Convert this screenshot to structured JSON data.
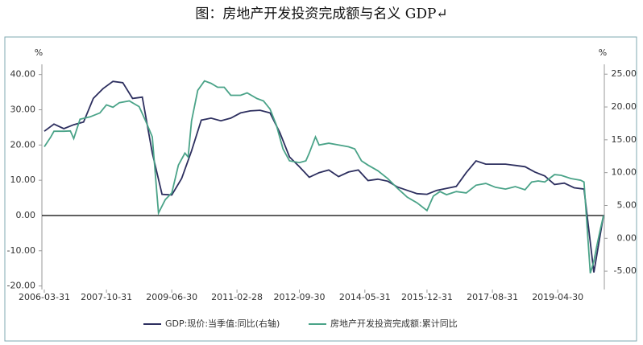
{
  "chart_data": {
    "type": "line",
    "title": "图：房地产开发投资完成额与名义 GDP↵",
    "y_unit": "%",
    "y2_unit": "%",
    "xlim": [
      "2006-03-31",
      "2020-06-30"
    ],
    "xticks": [
      "2006-03-31",
      "2007-10-31",
      "2009-06-30",
      "2011-02-28",
      "2012-09-30",
      "2014-05-31",
      "2015-12-31",
      "2017-08-31",
      "2019-04-30"
    ],
    "ylim": [
      -21,
      47
    ],
    "yticks": [
      {
        "value": -20,
        "label": "-20.00"
      },
      {
        "value": -10,
        "label": "-10.00"
      },
      {
        "value": 0,
        "label": "0.00"
      },
      {
        "value": 10,
        "label": "10.00"
      },
      {
        "value": 20,
        "label": "20.00"
      },
      {
        "value": 30,
        "label": "30.00"
      },
      {
        "value": 40,
        "label": "40.00"
      }
    ],
    "y2lim": [
      -7.8,
      28.7
    ],
    "y2ticks": [
      {
        "value": -5,
        "label": "-5.00"
      },
      {
        "value": 0,
        "label": "0.00"
      },
      {
        "value": 5,
        "label": "5.00"
      },
      {
        "value": 10,
        "label": "10.00"
      },
      {
        "value": 15,
        "label": "15.00"
      },
      {
        "value": 20,
        "label": "20.00"
      },
      {
        "value": 25,
        "label": "25.00"
      }
    ],
    "series": [
      {
        "name": "GDP:现价:当季值:同比(右轴)",
        "color": "#2d2f5f",
        "axis": "y2",
        "x": [
          "2006-03-31",
          "2006-06-30",
          "2006-09-30",
          "2006-12-31",
          "2007-03-31",
          "2007-06-30",
          "2007-09-30",
          "2007-12-31",
          "2008-03-31",
          "2008-06-30",
          "2008-09-30",
          "2008-12-31",
          "2009-03-31",
          "2009-06-30",
          "2009-09-30",
          "2009-12-31",
          "2010-03-31",
          "2010-06-30",
          "2010-09-30",
          "2010-12-31",
          "2011-03-31",
          "2011-06-30",
          "2011-09-30",
          "2011-12-31",
          "2012-03-31",
          "2012-06-30",
          "2012-09-30",
          "2012-12-31",
          "2013-03-31",
          "2013-06-30",
          "2013-09-30",
          "2013-12-31",
          "2014-03-31",
          "2014-06-30",
          "2014-09-30",
          "2014-12-31",
          "2015-03-31",
          "2015-06-30",
          "2015-09-30",
          "2015-12-31",
          "2016-03-31",
          "2016-06-30",
          "2016-09-30",
          "2016-12-31",
          "2017-03-31",
          "2017-06-30",
          "2017-09-30",
          "2017-12-31",
          "2018-03-31",
          "2018-06-30",
          "2018-09-30",
          "2018-12-31",
          "2019-03-31",
          "2019-06-30",
          "2019-09-30",
          "2019-12-31",
          "2020-03-31",
          "2020-06-30"
        ],
        "values": [
          16.3,
          17.4,
          16.7,
          17.3,
          17.7,
          21.3,
          22.8,
          23.9,
          23.7,
          21.3,
          21.5,
          13.0,
          6.7,
          6.6,
          9.1,
          13.3,
          18.0,
          18.3,
          17.9,
          18.3,
          19.1,
          19.4,
          19.5,
          19.1,
          16.1,
          12.4,
          10.9,
          9.3,
          10.0,
          10.4,
          9.4,
          10.1,
          10.4,
          8.8,
          9.0,
          8.7,
          7.8,
          7.3,
          6.8,
          6.7,
          7.3,
          7.6,
          7.9,
          10.0,
          11.8,
          11.3,
          11.3,
          11.3,
          11.1,
          10.9,
          10.1,
          9.5,
          8.2,
          8.4,
          7.7,
          7.5,
          -5.2,
          3.5
        ]
      },
      {
        "name": "房地产开发投资完成额:累计同比",
        "color": "#4aa388",
        "axis": "y",
        "x": [
          "2006-03-31",
          "2006-05-31",
          "2006-06-30",
          "2006-09-30",
          "2006-11-30",
          "2006-12-31",
          "2007-02-28",
          "2007-05-31",
          "2007-08-31",
          "2007-10-31",
          "2007-12-31",
          "2008-02-29",
          "2008-05-31",
          "2008-08-31",
          "2008-10-31",
          "2008-12-31",
          "2009-02-28",
          "2009-04-30",
          "2009-06-30",
          "2009-08-31",
          "2009-10-31",
          "2009-11-30",
          "2009-12-31",
          "2010-02-28",
          "2010-04-30",
          "2010-06-30",
          "2010-08-31",
          "2010-10-31",
          "2010-12-31",
          "2011-03-31",
          "2011-05-31",
          "2011-08-31",
          "2011-10-31",
          "2011-12-31",
          "2012-02-29",
          "2012-04-30",
          "2012-06-30",
          "2012-09-30",
          "2012-11-30",
          "2012-12-31",
          "2013-02-28",
          "2013-03-31",
          "2013-06-30",
          "2013-09-30",
          "2013-12-31",
          "2014-02-28",
          "2014-04-30",
          "2014-06-30",
          "2014-09-30",
          "2014-12-31",
          "2015-03-31",
          "2015-06-30",
          "2015-09-30",
          "2015-12-31",
          "2016-02-29",
          "2016-04-30",
          "2016-06-30",
          "2016-09-30",
          "2016-12-31",
          "2017-03-31",
          "2017-06-30",
          "2017-09-30",
          "2017-12-31",
          "2018-03-31",
          "2018-06-30",
          "2018-08-31",
          "2018-10-31",
          "2018-12-31",
          "2019-03-31",
          "2019-05-31",
          "2019-08-31",
          "2019-11-30",
          "2019-12-31",
          "2020-02-29",
          "2020-03-31",
          "2020-04-30",
          "2020-05-31",
          "2020-06-30"
        ],
        "values": [
          19.5,
          22.3,
          23.9,
          23.9,
          24.0,
          21.8,
          27.3,
          28.0,
          29.1,
          31.4,
          30.7,
          32.0,
          32.5,
          30.9,
          26.8,
          22.3,
          0.7,
          4.5,
          6.4,
          14.3,
          17.7,
          16.6,
          26.8,
          35.5,
          38.2,
          37.5,
          36.4,
          36.4,
          34.1,
          34.1,
          34.8,
          33.2,
          32.5,
          30.2,
          25.7,
          18.9,
          15.5,
          15.0,
          15.5,
          17.7,
          22.3,
          20.0,
          20.5,
          20.0,
          19.5,
          18.9,
          15.5,
          14.3,
          12.7,
          10.5,
          7.7,
          5.2,
          3.6,
          1.4,
          5.5,
          6.8,
          5.9,
          6.8,
          6.4,
          8.6,
          9.1,
          8.0,
          7.5,
          8.2,
          7.3,
          9.5,
          9.8,
          9.5,
          11.6,
          11.4,
          10.5,
          10.0,
          9.5,
          -16.4,
          -13.0,
          -8.4,
          -3.9,
          0.0
        ]
      }
    ]
  }
}
